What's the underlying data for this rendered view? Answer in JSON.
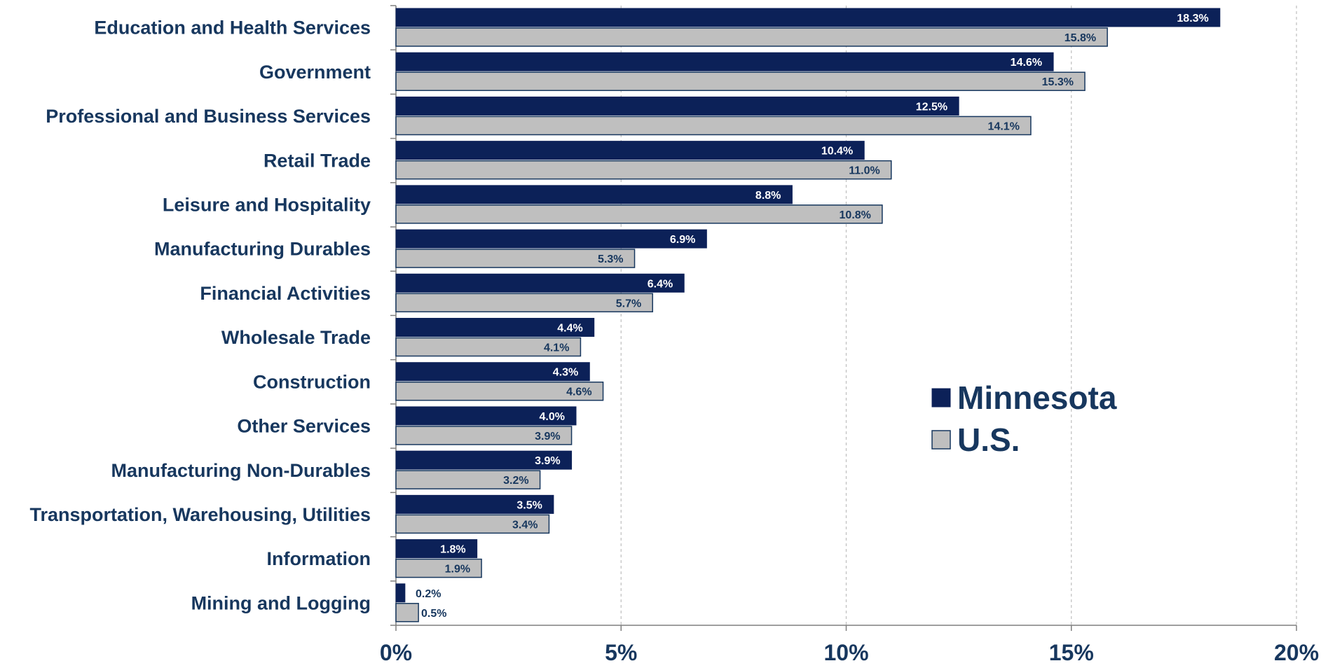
{
  "chart_data": {
    "type": "bar",
    "orientation": "horizontal",
    "categories": [
      "Education and Health Services",
      "Government",
      "Professional and Business Services",
      "Retail Trade",
      "Leisure and Hospitality",
      "Manufacturing Durables",
      "Financial Activities",
      "Wholesale Trade",
      "Construction",
      "Other Services",
      "Manufacturing Non-Durables",
      "Transportation, Warehousing, Utilities",
      "Information",
      "Mining and Logging"
    ],
    "series": [
      {
        "name": "Minnesota",
        "color": "#0c2158",
        "values": [
          18.3,
          14.6,
          12.5,
          10.4,
          8.8,
          6.9,
          6.4,
          4.4,
          4.3,
          4.0,
          3.9,
          3.5,
          1.8,
          0.2
        ],
        "labels": [
          "18.3%",
          "14.6%",
          "12.5%",
          "10.4%",
          "8.8%",
          "6.9%",
          "6.4%",
          "4.4%",
          "4.3%",
          "4.0%",
          "3.9%",
          "3.5%",
          "1.8%",
          "0.2%"
        ]
      },
      {
        "name": "U.S.",
        "color": "#bfbfbf",
        "values": [
          15.8,
          15.3,
          14.1,
          11.0,
          10.8,
          5.3,
          5.7,
          4.1,
          4.6,
          3.9,
          3.2,
          3.4,
          1.9,
          0.5
        ],
        "labels": [
          "15.8%",
          "15.3%",
          "14.1%",
          "11.0%",
          "10.8%",
          "5.3%",
          "5.7%",
          "4.1%",
          "4.6%",
          "3.9%",
          "3.2%",
          "3.4%",
          "1.9%",
          "0.5%"
        ]
      }
    ],
    "xlim": [
      0,
      20
    ],
    "xticks": [
      0,
      5,
      10,
      15,
      20
    ],
    "xtick_labels": [
      "0%",
      "5%",
      "10%",
      "15%",
      "20%"
    ],
    "grid": "vertical dashed",
    "legend": {
      "position": "middle-right",
      "entries": [
        "Minnesota",
        "U.S."
      ]
    },
    "text_color": "#17375e"
  }
}
